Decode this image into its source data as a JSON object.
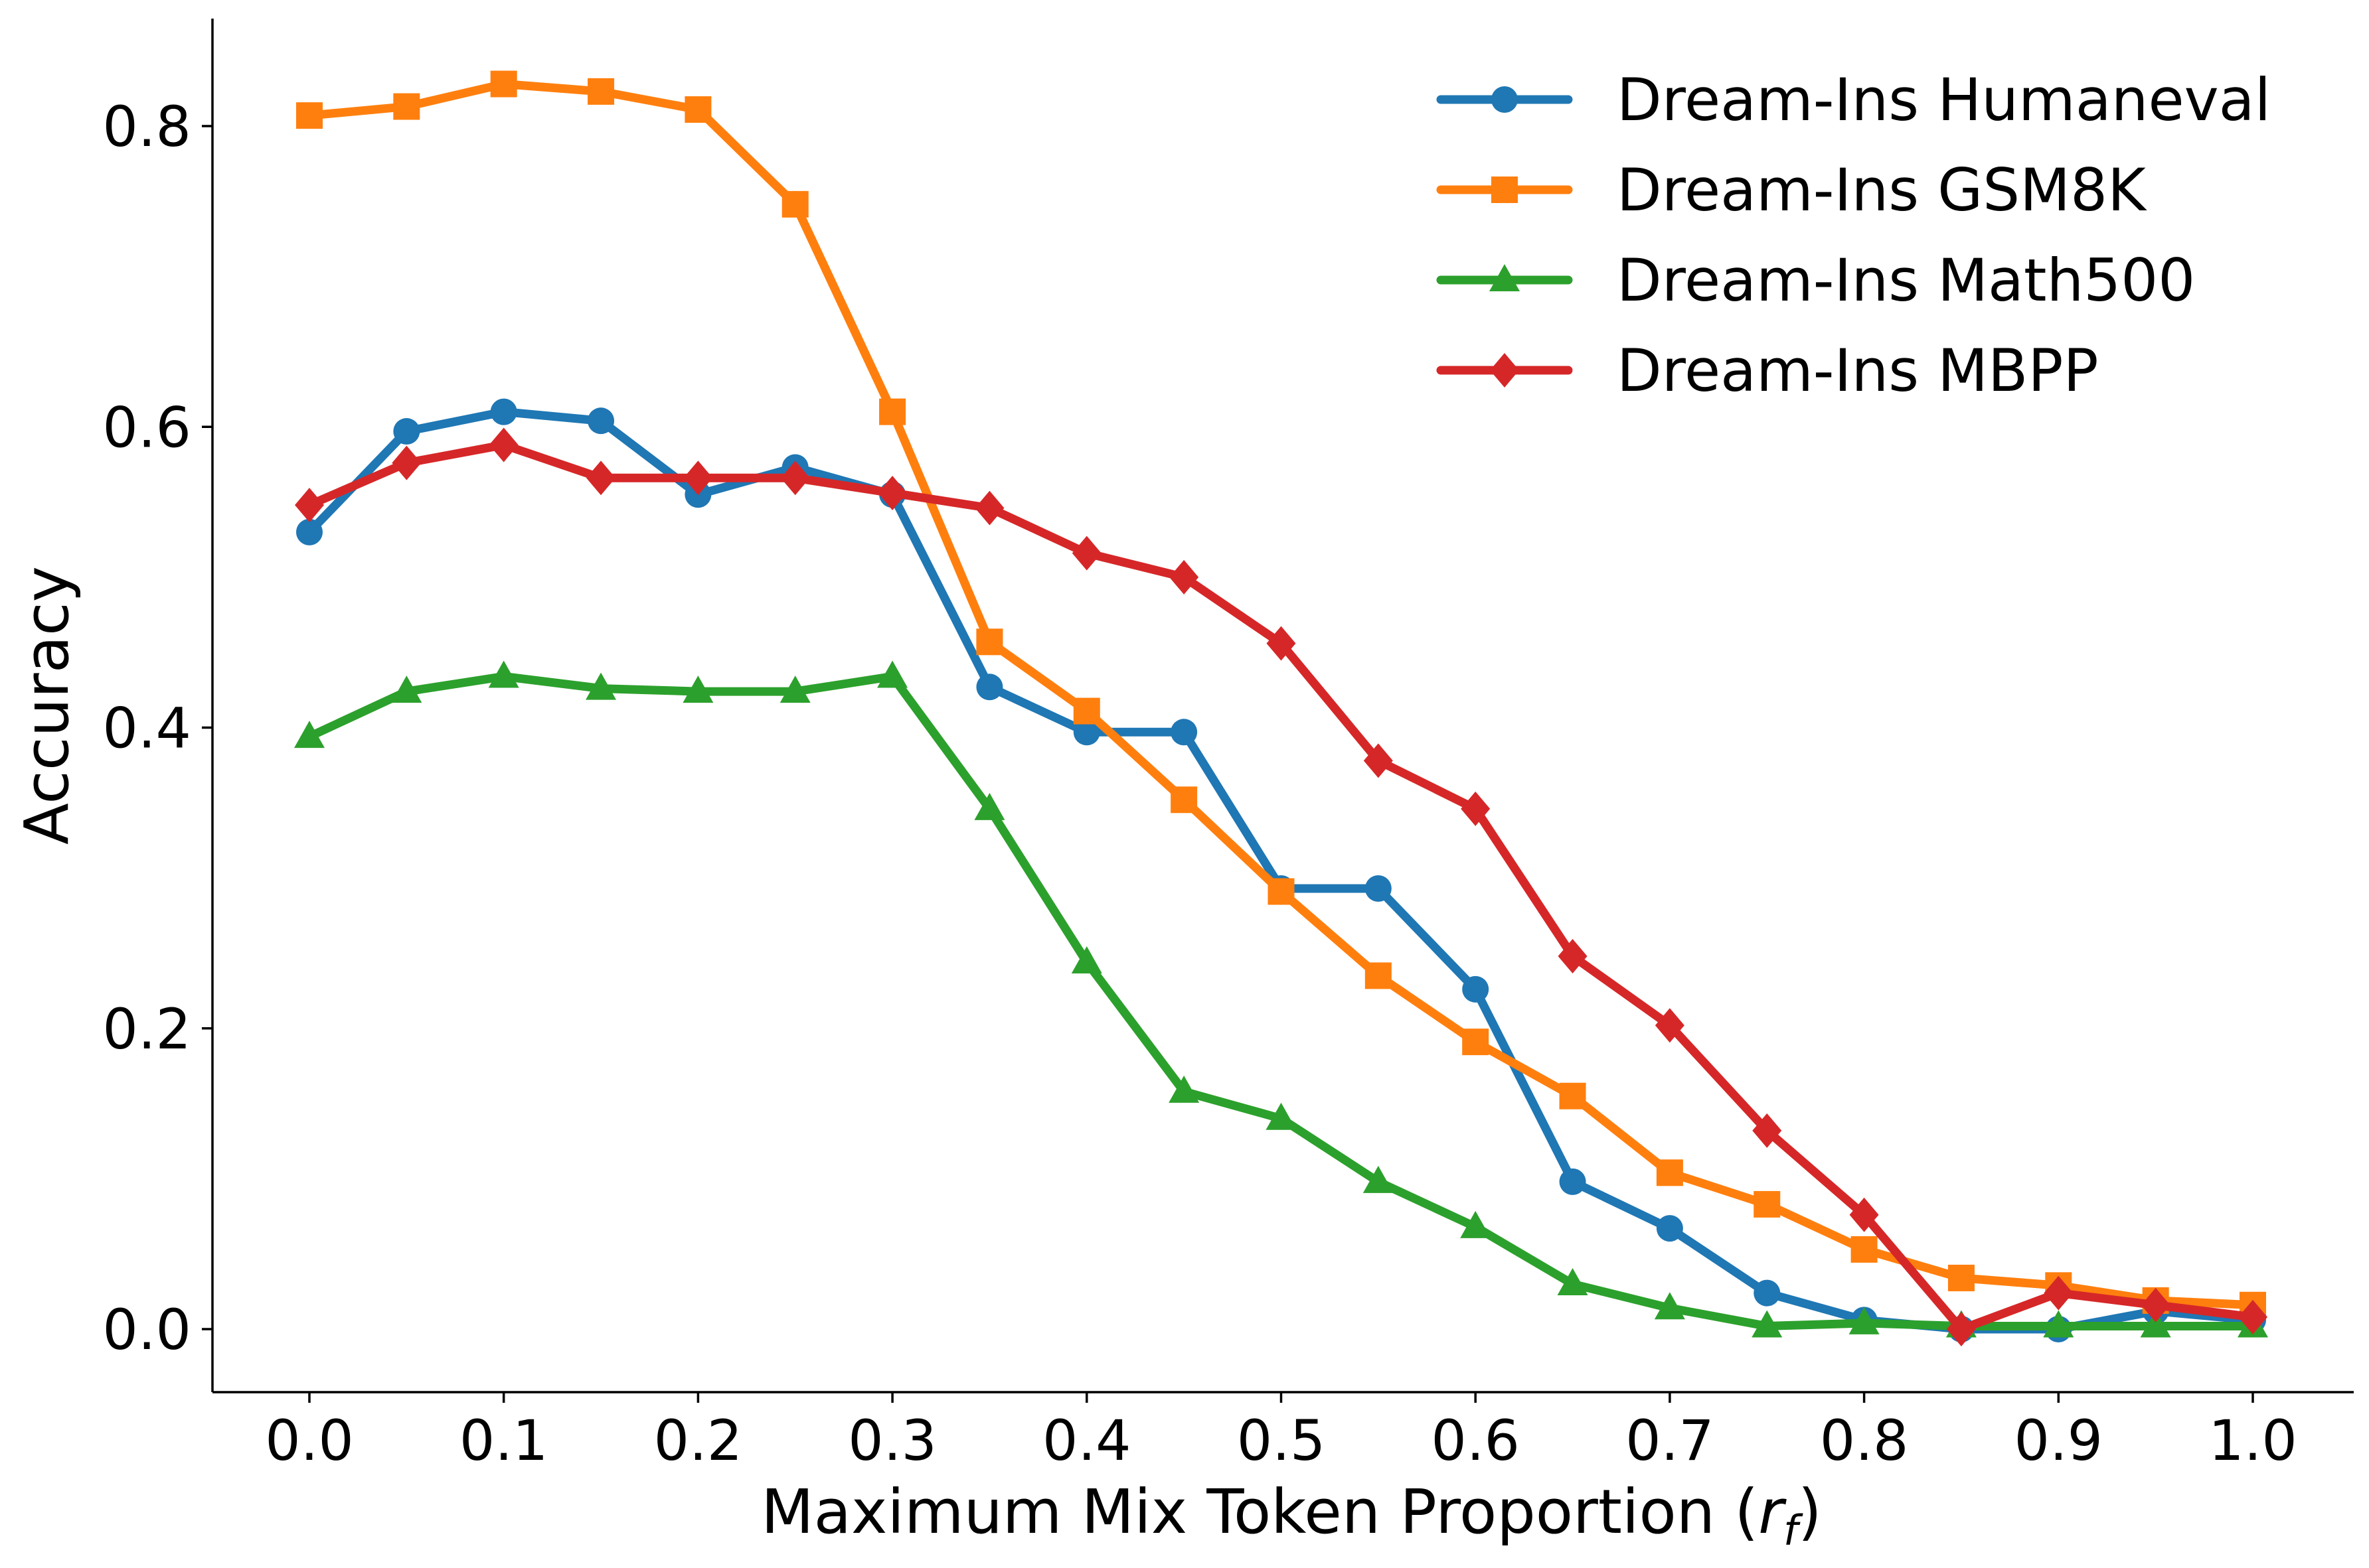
{
  "chart_data": {
    "type": "line",
    "title": "",
    "xlabel": "Maximum Mix Token Proportion (",
    "xlabel_symbol": "r",
    "xlabel_subscript": "f",
    "xlabel_close": ")",
    "ylabel": "Accuracy",
    "xlim": [
      -0.05,
      1.05
    ],
    "ylim": [
      -0.04,
      0.87
    ],
    "xticks": [
      0.0,
      0.1,
      0.2,
      0.3,
      0.4,
      0.5,
      0.6,
      0.7,
      0.8,
      0.9,
      1.0
    ],
    "xtick_labels": [
      "0.0",
      "0.1",
      "0.2",
      "0.3",
      "0.4",
      "0.5",
      "0.6",
      "0.7",
      "0.8",
      "0.9",
      "1.0"
    ],
    "yticks": [
      0.0,
      0.2,
      0.4,
      0.6,
      0.8
    ],
    "ytick_labels": [
      "0.0",
      "0.2",
      "0.4",
      "0.6",
      "0.8"
    ],
    "grid": false,
    "legend_position": "top-right",
    "x": [
      0.0,
      0.05,
      0.1,
      0.15,
      0.2,
      0.25,
      0.3,
      0.35,
      0.4,
      0.45,
      0.5,
      0.55,
      0.6,
      0.65,
      0.7,
      0.75,
      0.8,
      0.85,
      0.9,
      0.95,
      1.0
    ],
    "series": [
      {
        "name": "Dream-Ins Humaneval",
        "key": "humaneval",
        "color": "#1f77b4",
        "marker": "circle",
        "values": [
          0.53,
          0.597,
          0.61,
          0.604,
          0.555,
          0.573,
          0.555,
          0.427,
          0.397,
          0.397,
          0.293,
          0.293,
          0.226,
          0.098,
          0.067,
          0.024,
          0.006,
          0.0,
          0.0,
          0.012,
          0.006
        ]
      },
      {
        "name": "Dream-Ins GSM8K",
        "key": "gsm8k",
        "color": "#ff7f0e",
        "marker": "square",
        "values": [
          0.807,
          0.813,
          0.828,
          0.823,
          0.811,
          0.748,
          0.61,
          0.457,
          0.411,
          0.352,
          0.291,
          0.235,
          0.191,
          0.155,
          0.104,
          0.083,
          0.053,
          0.034,
          0.029,
          0.019,
          0.016
        ]
      },
      {
        "name": "Dream-Ins Math500",
        "key": "math500",
        "color": "#2ca02c",
        "marker": "triangle",
        "values": [
          0.394,
          0.424,
          0.434,
          0.426,
          0.424,
          0.424,
          0.434,
          0.346,
          0.244,
          0.158,
          0.14,
          0.098,
          0.068,
          0.03,
          0.014,
          0.002,
          0.004,
          0.002,
          0.002,
          0.002,
          0.002
        ]
      },
      {
        "name": "Dream-Ins MBPP",
        "key": "mbpp",
        "color": "#d62728",
        "marker": "diamond",
        "values": [
          0.548,
          0.576,
          0.588,
          0.566,
          0.566,
          0.566,
          0.556,
          0.546,
          0.516,
          0.5,
          0.456,
          0.378,
          0.346,
          0.248,
          0.202,
          0.132,
          0.076,
          0.0,
          0.024,
          0.016,
          0.008
        ]
      }
    ]
  }
}
